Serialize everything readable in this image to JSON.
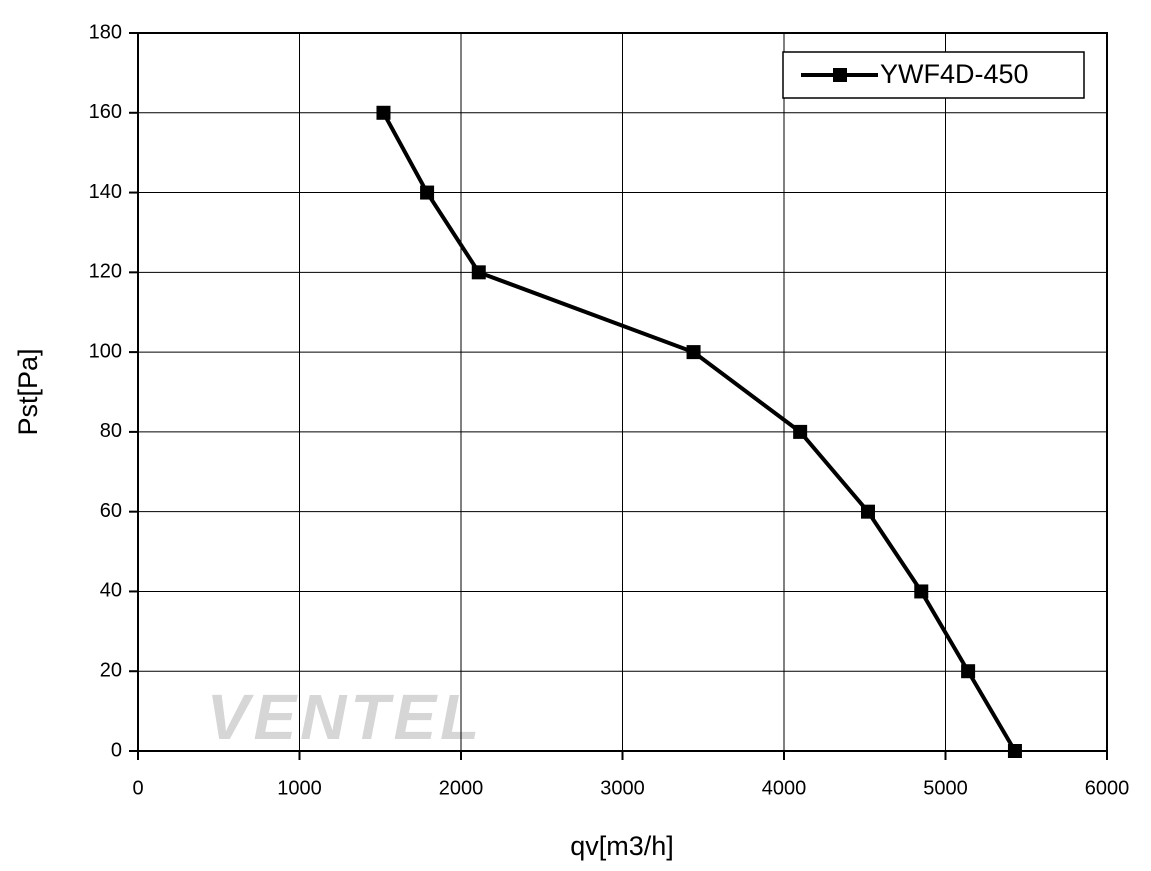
{
  "chart_data": {
    "type": "line",
    "watermark": "VENTEL",
    "x_label": "qv[m3/h]",
    "y_label": "Pst[Pa]",
    "xlim": [
      0,
      6000
    ],
    "xticks": [
      0,
      1000,
      2000,
      3000,
      4000,
      5000,
      6000
    ],
    "ylim": [
      0,
      180
    ],
    "yticks": [
      0,
      20,
      40,
      60,
      80,
      100,
      120,
      140,
      160,
      180
    ],
    "grid": true,
    "legend": "top-right",
    "series": [
      {
        "name": "YWF4D-450",
        "color": "#000000",
        "x": [
          1520,
          1790,
          2110,
          3440,
          4100,
          4520,
          4850,
          5140,
          5430
        ],
        "values": [
          160,
          140,
          120,
          100,
          80,
          60,
          40,
          20,
          0
        ]
      }
    ]
  }
}
